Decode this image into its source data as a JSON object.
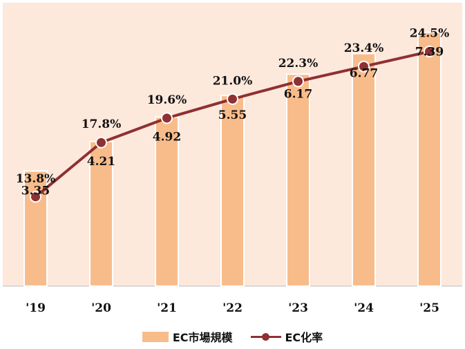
{
  "chart_data": {
    "type": "bar",
    "categories": [
      "'19",
      "'20",
      "'21",
      "'22",
      "'23",
      "'24",
      "'25"
    ],
    "series": [
      {
        "name": "EC市場規模",
        "type": "bar",
        "values": [
          3.35,
          4.21,
          4.92,
          5.55,
          6.17,
          6.77,
          7.39
        ],
        "labels": [
          "3.35",
          "4.21",
          "4.92",
          "5.55",
          "6.17",
          "6.77",
          "7.39"
        ],
        "color": "#f8bc8b"
      },
      {
        "name": "EC化率",
        "type": "line",
        "values": [
          13.8,
          17.8,
          19.6,
          21.0,
          22.3,
          23.4,
          24.5
        ],
        "labels": [
          "13.8%",
          "17.8%",
          "19.6%",
          "21.0%",
          "22.3%",
          "23.4%",
          "24.5%"
        ],
        "color": "#8f3032"
      }
    ],
    "bar_axis_range": [
      0,
      8
    ],
    "line_axis_range": [
      0,
      36
    ],
    "grid": false,
    "legend_position": "bottom",
    "plot_background": "#fde8dc"
  }
}
